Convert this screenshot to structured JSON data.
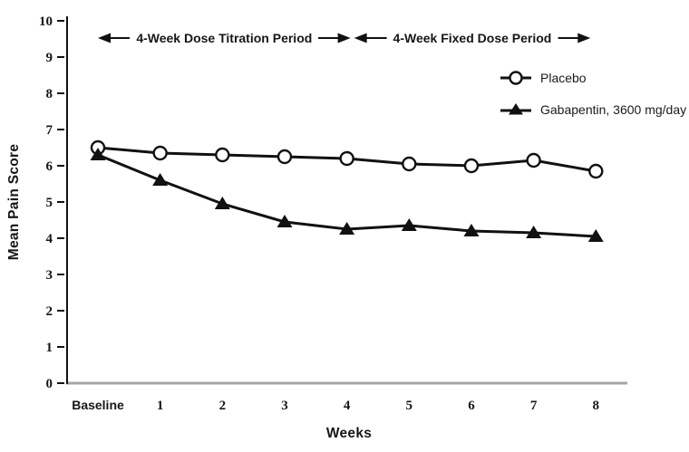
{
  "chart_data": {
    "type": "line",
    "title": "",
    "xlabel": "Weeks",
    "ylabel": "Mean Pain Score",
    "categories": [
      "Baseline",
      "1",
      "2",
      "3",
      "4",
      "5",
      "6",
      "7",
      "8"
    ],
    "series": [
      {
        "id": "placebo",
        "name": "Placebo",
        "marker": "open-circle",
        "values": [
          6.5,
          6.35,
          6.3,
          6.25,
          6.2,
          6.05,
          6.0,
          6.15,
          5.85
        ]
      },
      {
        "id": "gabapentin",
        "name": "Gabapentin, 3600 mg/day",
        "marker": "filled-triangle",
        "values": [
          6.3,
          5.6,
          4.95,
          4.45,
          4.25,
          4.35,
          4.2,
          4.15,
          4.05
        ]
      }
    ],
    "ylim": [
      0,
      10
    ],
    "yticks": [
      0,
      1,
      2,
      3,
      4,
      5,
      6,
      7,
      8,
      9,
      10
    ],
    "grid": false,
    "legend": {
      "position": "upper-right",
      "entries": [
        "Placebo",
        "Gabapentin, 3600 mg/day"
      ]
    },
    "annotations": [
      {
        "text": "4-Week Dose Titration Period",
        "x_start": "Baseline",
        "x_end": "4",
        "style": "double-arrow"
      },
      {
        "text": "4-Week Fixed Dose Period",
        "x_start": "4",
        "x_end": "8",
        "style": "double-arrow"
      }
    ],
    "colors": {
      "line": "#111111",
      "marker_fill_open": "#ffffff",
      "x_axis_line": "#a6a6a6",
      "background": "#ffffff"
    }
  }
}
